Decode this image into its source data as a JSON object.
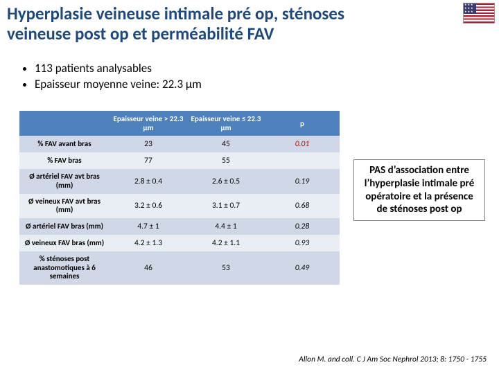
{
  "title_color": "#1f497d",
  "title_line1": "Hyperplasie veineuse intimale pré op, sténoses",
  "title_line2": "veineuse post op et perméabilité FAV",
  "bullets": {
    "items": [
      "113 patients analysables",
      "Epaisseur moyenne veine: 22.3 µm"
    ]
  },
  "table": {
    "header_bg": "#4f81bd",
    "header_fg": "#ffffff",
    "band_colors": [
      "#d0d8e8",
      "#e9edf4"
    ],
    "columns": [
      {
        "label": ""
      },
      {
        "label": "Epaisseur veine > 22.3 µm"
      },
      {
        "label": "Epaisseur veine ≤ 22.3 µm"
      },
      {
        "label": "p"
      }
    ],
    "rows": [
      {
        "head": "% FAV avant bras",
        "v1": "23",
        "v2": "45",
        "p": "0.01",
        "p_color": "#c00000"
      },
      {
        "head": "% FAV bras",
        "v1": "77",
        "v2": "55",
        "p": ""
      },
      {
        "head": "Ø artériel FAV avt bras (mm)",
        "v1": "2.8 ± 0.4",
        "v2": "2.6 ± 0.5",
        "p": "0.19"
      },
      {
        "head": "Ø veineux FAV avt bras (mm)",
        "v1": "3.2 ± 0.6",
        "v2": "3.1 ± 0.7",
        "p": "0.68"
      },
      {
        "head": "Ø artériel FAV bras (mm)",
        "v1": "4.7 ± 1",
        "v2": "4.4 ± 1",
        "p": "0.28"
      },
      {
        "head": "Ø veineux FAV bras (mm)",
        "v1": "4.2 ± 1.3",
        "v2": "4.2 ± 1.1",
        "p": "0.93"
      },
      {
        "head": "% sténoses post anastomotiques à 6 semaines",
        "v1": "46",
        "v2": "53",
        "p": "0.49"
      }
    ]
  },
  "callout": "PAS d’association entre l’hyperplasie intimale pré opératoire et la présence de sténoses post op",
  "citation": "Allon M. and coll. C J Am Soc Nephrol 2013; 8: 1750 - 1755"
}
